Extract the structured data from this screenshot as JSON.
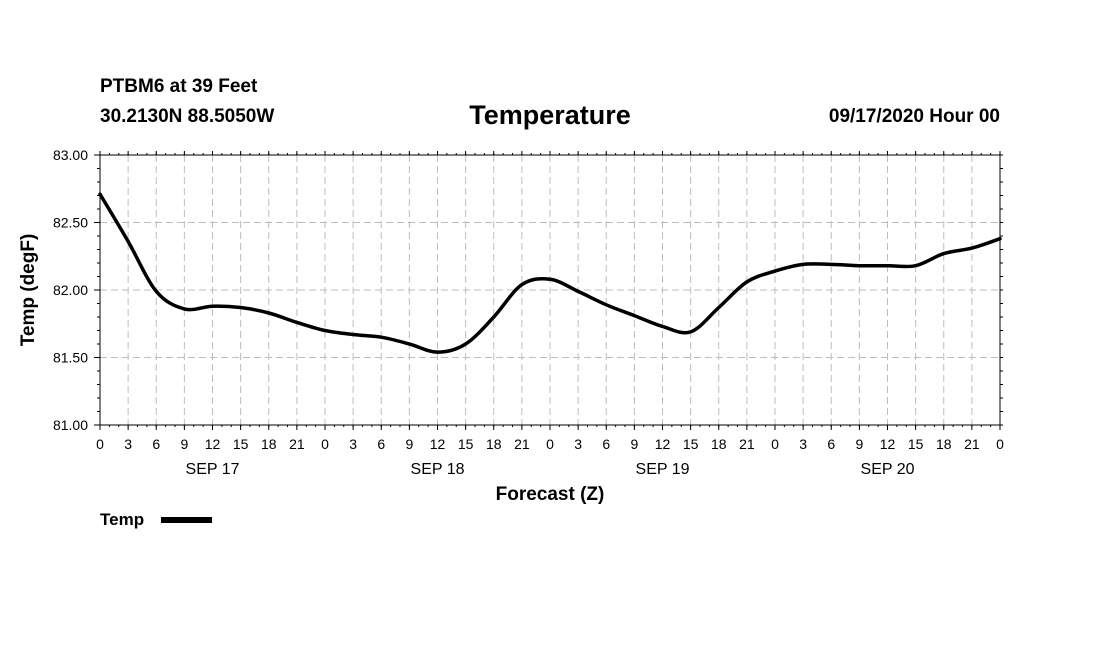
{
  "header": {
    "station": "PTBM6 at 39 Feet",
    "coords": "30.2130N 88.5050W",
    "title": "Temperature",
    "run_time": "09/17/2020 Hour 00"
  },
  "chart_data": {
    "type": "line",
    "title": "Temperature",
    "xlabel": "Forecast (Z)",
    "ylabel": "Temp (degF)",
    "ylim": [
      81.0,
      83.0
    ],
    "xlim_hours": [
      0,
      96
    ],
    "y_ticks": [
      "81.00",
      "81.50",
      "82.00",
      "82.50",
      "83.00"
    ],
    "x_tick_hours": [
      0,
      3,
      6,
      9,
      12,
      15,
      18,
      21,
      24,
      27,
      30,
      33,
      36,
      39,
      42,
      45,
      48,
      51,
      54,
      57,
      60,
      63,
      66,
      69,
      72,
      75,
      78,
      81,
      84,
      87,
      90,
      93,
      96
    ],
    "x_tick_labels": [
      "0",
      "3",
      "6",
      "9",
      "12",
      "15",
      "18",
      "21",
      "0",
      "3",
      "6",
      "9",
      "12",
      "15",
      "18",
      "21",
      "0",
      "3",
      "6",
      "9",
      "12",
      "15",
      "18",
      "21",
      "0",
      "3",
      "6",
      "9",
      "12",
      "15",
      "18",
      "21",
      "0"
    ],
    "day_labels": [
      {
        "hour": 12,
        "label": "SEP 17"
      },
      {
        "hour": 36,
        "label": "SEP 18"
      },
      {
        "hour": 60,
        "label": "SEP 19"
      },
      {
        "hour": 84,
        "label": "SEP 20"
      }
    ],
    "grid": true,
    "series": [
      {
        "name": "Temp",
        "color": "#000000",
        "x": [
          0,
          3,
          6,
          9,
          12,
          15,
          18,
          21,
          24,
          27,
          30,
          33,
          36,
          39,
          42,
          45,
          48,
          51,
          54,
          57,
          60,
          63,
          66,
          69,
          72,
          75,
          78,
          81,
          84,
          87,
          90,
          93,
          96
        ],
        "values": [
          82.71,
          82.36,
          81.99,
          81.86,
          81.88,
          81.87,
          81.83,
          81.76,
          81.7,
          81.67,
          81.65,
          81.6,
          81.54,
          81.6,
          81.8,
          82.04,
          82.08,
          81.99,
          81.89,
          81.81,
          81.73,
          81.69,
          81.87,
          82.06,
          82.14,
          82.19,
          82.19,
          82.18,
          82.18,
          82.18,
          82.27,
          82.31,
          82.38
        ]
      }
    ],
    "legend": {
      "label": "Temp",
      "placement": "bottom-left"
    }
  }
}
